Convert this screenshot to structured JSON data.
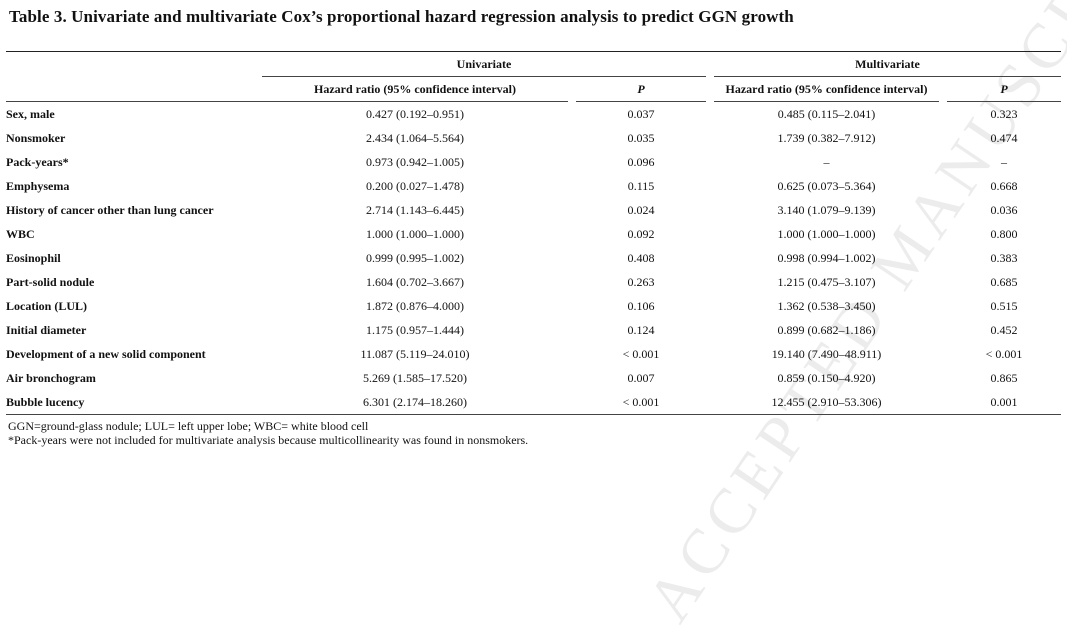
{
  "title": "Table 3. Univariate and multivariate Cox’s proportional hazard regression analysis to predict GGN growth",
  "watermark": "ACCEPTED MANUSCRIPT",
  "headers": {
    "univariate": "Univariate",
    "multivariate": "Multivariate",
    "hr_label": "Hazard ratio (95% confidence interval)",
    "p_label": "P"
  },
  "rows": [
    {
      "variable": "Sex, male",
      "uni_hr": "0.427 (0.192–0.951)",
      "uni_p": "0.037",
      "multi_hr": "0.485 (0.115–2.041)",
      "multi_p": "0.323"
    },
    {
      "variable": "Nonsmoker",
      "uni_hr": "2.434 (1.064–5.564)",
      "uni_p": "0.035",
      "multi_hr": "1.739 (0.382–7.912)",
      "multi_p": "0.474"
    },
    {
      "variable": "Pack-years*",
      "uni_hr": "0.973 (0.942–1.005)",
      "uni_p": "0.096",
      "multi_hr": "–",
      "multi_p": "–"
    },
    {
      "variable": "Emphysema",
      "uni_hr": "0.200 (0.027–1.478)",
      "uni_p": "0.115",
      "multi_hr": "0.625 (0.073–5.364)",
      "multi_p": "0.668"
    },
    {
      "variable": "History of cancer other than lung cancer",
      "uni_hr": "2.714 (1.143–6.445)",
      "uni_p": "0.024",
      "multi_hr": "3.140 (1.079–9.139)",
      "multi_p": "0.036"
    },
    {
      "variable": "WBC",
      "uni_hr": "1.000 (1.000–1.000)",
      "uni_p": "0.092",
      "multi_hr": "1.000 (1.000–1.000)",
      "multi_p": "0.800"
    },
    {
      "variable": "Eosinophil",
      "uni_hr": "0.999 (0.995–1.002)",
      "uni_p": "0.408",
      "multi_hr": "0.998 (0.994–1.002)",
      "multi_p": "0.383"
    },
    {
      "variable": "Part-solid nodule",
      "uni_hr": "1.604 (0.702–3.667)",
      "uni_p": "0.263",
      "multi_hr": "1.215 (0.475–3.107)",
      "multi_p": "0.685"
    },
    {
      "variable": "Location (LUL)",
      "uni_hr": "1.872 (0.876–4.000)",
      "uni_p": "0.106",
      "multi_hr": "1.362 (0.538–3.450)",
      "multi_p": "0.515"
    },
    {
      "variable": "Initial diameter",
      "uni_hr": "1.175 (0.957–1.444)",
      "uni_p": "0.124",
      "multi_hr": "0.899 (0.682–1.186)",
      "multi_p": "0.452"
    },
    {
      "variable": "Development of a new solid component",
      "uni_hr": "11.087 (5.119–24.010)",
      "uni_p": "< 0.001",
      "multi_hr": "19.140 (7.490–48.911)",
      "multi_p": "< 0.001"
    },
    {
      "variable": "Air bronchogram",
      "uni_hr": "5.269 (1.585–17.520)",
      "uni_p": "0.007",
      "multi_hr": "0.859 (0.150–4.920)",
      "multi_p": "0.865"
    },
    {
      "variable": "Bubble lucency",
      "uni_hr": "6.301 (2.174–18.260)",
      "uni_p": "< 0.001",
      "multi_hr": "12.455 (2.910–53.306)",
      "multi_p": "0.001"
    }
  ],
  "footnotes": [
    "GGN=ground-glass nodule; LUL= left upper lobe; WBC= white blood cell",
    "*Pack-years were not included for multivariate analysis because multicollinearity was found in nonsmokers."
  ]
}
